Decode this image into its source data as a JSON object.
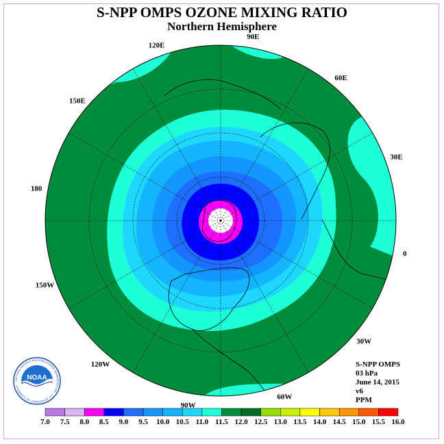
{
  "title": "S-NPP OMPS OZONE MIXING RATIO",
  "subtitle": "Northern Hemisphere",
  "longitude_labels": [
    "90E",
    "60E",
    "30E",
    "0",
    "30W",
    "60W",
    "90W",
    "120W",
    "150W",
    "180",
    "150E",
    "120E"
  ],
  "info": {
    "product": "S-NPP OMPS",
    "level": "03 hPa",
    "date": "June 14, 2015",
    "version": "v6",
    "units": "PPM"
  },
  "colorbar": {
    "ticks": [
      "7.0",
      "7.5",
      "8.0",
      "8.5",
      "9.0",
      "9.5",
      "10.0",
      "10.5",
      "11.0",
      "11.5",
      "12.0",
      "12.5",
      "13.0",
      "13.5",
      "14.0",
      "14.5",
      "15.0",
      "15.5",
      "16.0"
    ],
    "colors": [
      "#b57ae6",
      "#dcb4f0",
      "#ff00ff",
      "#0000ff",
      "#1e6fff",
      "#1496ff",
      "#14b4ff",
      "#1ed7ff",
      "#1effd7",
      "#008c3c",
      "#006e28",
      "#96dc00",
      "#c8f000",
      "#ffff00",
      "#ffc800",
      "#ff9600",
      "#ff5a00",
      "#ff0000",
      "#8c5a3c"
    ]
  },
  "logo": {
    "text": "NOAA",
    "ring_text": "NATIONAL OCEANIC AND ATMOSPHERIC ADMINISTRATION · U.S. DEPARTMENT OF COMMERCE"
  },
  "legend_colors": {
    "water_white": "#ffffff",
    "magenta": "#ff00ff",
    "blue": "#0000ff",
    "dodger": "#1e6fff",
    "mid": "#1496ff",
    "light": "#14b4ff",
    "sky": "#1ed7ff",
    "aqua": "#1effd7",
    "green": "#008c3c"
  }
}
